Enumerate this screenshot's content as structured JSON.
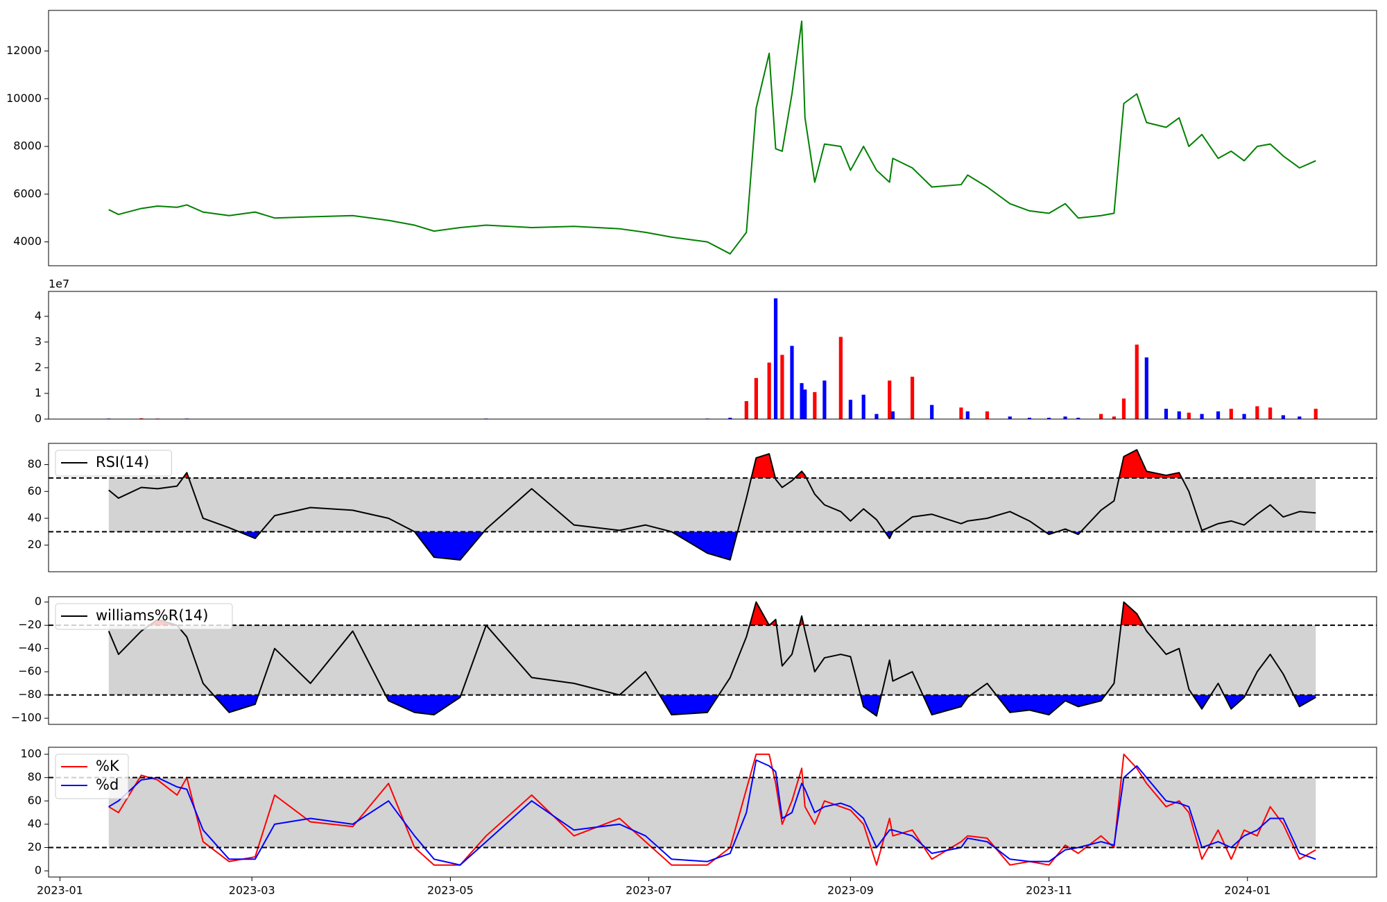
{
  "chart_data": [
    {
      "type": "line",
      "x": [
        15,
        18,
        25,
        30,
        36,
        39,
        44,
        52,
        60,
        66,
        77,
        90,
        101,
        109,
        115,
        123,
        131,
        145,
        158,
        172,
        180,
        188,
        199,
        206,
        211,
        214,
        218,
        220,
        222,
        225,
        228,
        229,
        232,
        235,
        240,
        243,
        247,
        251,
        255,
        256,
        262,
        268,
        277,
        279,
        285,
        292,
        298,
        304,
        309,
        313,
        320,
        324,
        327,
        331,
        334,
        340,
        344,
        347,
        351,
        356,
        360,
        364,
        368,
        372,
        376,
        381,
        386
      ],
      "series": [
        {
          "color": "#008000",
          "values": [
            5350,
            5150,
            5400,
            5500,
            5450,
            5550,
            5250,
            5100,
            5250,
            5000,
            5050,
            5100,
            4900,
            4700,
            4450,
            4600,
            4700,
            4600,
            4650,
            4550,
            4400,
            4200,
            4000,
            3500,
            4400,
            9600,
            11900,
            7900,
            7800,
            10200,
            13250,
            9200,
            6500,
            8100,
            8000,
            7000,
            8000,
            7000,
            6500,
            7500,
            7100,
            6300,
            6400,
            6800,
            6300,
            5600,
            5300,
            5200,
            5600,
            5000,
            5100,
            5200,
            9800,
            10200,
            9000,
            8800,
            9200,
            8000,
            8500,
            7500,
            7800,
            7400,
            8000,
            8100,
            7600,
            7100,
            7400
          ]
        }
      ],
      "xlim": [
        -3.5,
        404.7
      ],
      "ylim": [
        3000,
        13700
      ],
      "yticks": [
        4000,
        6000,
        8000,
        10000,
        12000
      ]
    },
    {
      "type": "bar",
      "x": [
        15,
        18,
        25,
        30,
        36,
        39,
        44,
        52,
        60,
        66,
        77,
        90,
        101,
        109,
        115,
        123,
        131,
        145,
        158,
        172,
        180,
        188,
        199,
        206,
        211,
        214,
        218,
        220,
        222,
        225,
        228,
        229,
        232,
        235,
        240,
        243,
        247,
        251,
        255,
        256,
        262,
        268,
        277,
        279,
        285,
        292,
        298,
        304,
        309,
        313,
        320,
        324,
        327,
        331,
        334,
        340,
        344,
        347,
        351,
        356,
        360,
        364,
        368,
        372,
        376,
        381,
        386
      ],
      "values": [
        0.02,
        0.01,
        0.03,
        0.02,
        0.01,
        0.02,
        0.01,
        0.01,
        0.01,
        0.01,
        0.01,
        0.01,
        0.01,
        0.01,
        0.01,
        0.01,
        0.02,
        0.01,
        0.01,
        0.01,
        0.01,
        0.01,
        0.02,
        0.05,
        0.7,
        1.6,
        2.2,
        4.7,
        2.5,
        2.85,
        1.4,
        1.15,
        1.05,
        1.5,
        3.2,
        0.75,
        0.95,
        0.2,
        1.5,
        0.3,
        1.65,
        0.55,
        0.45,
        0.3,
        0.3,
        0.1,
        0.05,
        0.05,
        0.1,
        0.05,
        0.2,
        0.1,
        0.8,
        2.9,
        2.4,
        0.4,
        0.3,
        0.25,
        0.2,
        0.3,
        0.4,
        0.2,
        0.5,
        0.45,
        0.15,
        0.1,
        0.4
      ],
      "colors": [
        "#0000ff",
        "#0000ff",
        "#ff0000",
        "#ff0000",
        "#0000ff",
        "#0000ff",
        "#0000ff",
        "#0000ff",
        "#0000ff",
        "#0000ff",
        "#0000ff",
        "#0000ff",
        "#0000ff",
        "#0000ff",
        "#0000ff",
        "#0000ff",
        "#0000ff",
        "#ff0000",
        "#0000ff",
        "#0000ff",
        "#0000ff",
        "#0000ff",
        "#0000ff",
        "#0000ff",
        "#ff0000",
        "#ff0000",
        "#ff0000",
        "#0000ff",
        "#ff0000",
        "#0000ff",
        "#0000ff",
        "#0000ff",
        "#ff0000",
        "#0000ff",
        "#ff0000",
        "#0000ff",
        "#0000ff",
        "#0000ff",
        "#ff0000",
        "#0000ff",
        "#ff0000",
        "#0000ff",
        "#ff0000",
        "#0000ff",
        "#ff0000",
        "#0000ff",
        "#0000ff",
        "#0000ff",
        "#0000ff",
        "#0000ff",
        "#ff0000",
        "#ff0000",
        "#ff0000",
        "#ff0000",
        "#0000ff",
        "#0000ff",
        "#0000ff",
        "#ff0000",
        "#0000ff",
        "#0000ff",
        "#ff0000",
        "#0000ff",
        "#ff0000",
        "#ff0000",
        "#0000ff",
        "#0000ff",
        "#ff0000"
      ],
      "offset_text": "1e7",
      "xlim": [
        -3.5,
        404.7
      ],
      "ylim": [
        0,
        4.97
      ],
      "yticks": [
        0,
        1,
        2,
        3,
        4
      ]
    },
    {
      "type": "line",
      "x": [
        15,
        18,
        25,
        30,
        36,
        39,
        44,
        52,
        60,
        66,
        77,
        90,
        101,
        109,
        115,
        123,
        131,
        145,
        158,
        172,
        180,
        188,
        199,
        206,
        211,
        214,
        218,
        220,
        222,
        225,
        228,
        229,
        232,
        235,
        240,
        243,
        247,
        251,
        255,
        256,
        262,
        268,
        277,
        279,
        285,
        292,
        298,
        304,
        309,
        313,
        320,
        324,
        327,
        331,
        334,
        340,
        344,
        347,
        351,
        356,
        360,
        364,
        368,
        372,
        376,
        381,
        386
      ],
      "series": [
        {
          "name": "RSI(14)",
          "color": "#000000",
          "values": [
            61,
            55,
            63,
            62,
            64,
            74,
            40,
            33,
            25,
            42,
            48,
            46,
            40,
            30,
            11,
            9,
            32,
            62,
            35,
            31,
            35,
            30,
            14,
            9,
            55,
            85,
            88,
            69,
            63,
            68,
            75,
            72,
            58,
            50,
            45,
            38,
            47,
            39,
            25,
            30,
            41,
            43,
            36,
            38,
            40,
            45,
            38,
            28,
            32,
            28,
            46,
            53,
            86,
            91,
            75,
            72,
            74,
            60,
            31,
            36,
            38,
            35,
            43,
            50,
            41,
            45,
            44
          ]
        }
      ],
      "levels": [
        30,
        70
      ],
      "band_color": "#d3d3d3",
      "above_color": "#ff0000",
      "below_color": "#0000ff",
      "legend": "upper left",
      "xlim": [
        -3.5,
        404.7
      ],
      "ylim": [
        0.2,
        95.8
      ],
      "yticks": [
        20,
        40,
        60,
        80
      ]
    },
    {
      "type": "line",
      "x": [
        15,
        18,
        25,
        30,
        36,
        39,
        44,
        52,
        60,
        66,
        77,
        90,
        101,
        109,
        115,
        123,
        131,
        145,
        158,
        172,
        180,
        188,
        199,
        206,
        211,
        214,
        218,
        220,
        222,
        225,
        228,
        229,
        232,
        235,
        240,
        243,
        247,
        251,
        255,
        256,
        262,
        268,
        277,
        279,
        285,
        292,
        298,
        304,
        309,
        313,
        320,
        324,
        327,
        331,
        334,
        340,
        344,
        347,
        351,
        356,
        360,
        364,
        368,
        372,
        376,
        381,
        386
      ],
      "series": [
        {
          "name": "williams%R(14)",
          "color": "#000000",
          "values": [
            -25,
            -45,
            -25,
            -15,
            -20,
            -30,
            -70,
            -95,
            -88,
            -40,
            -70,
            -25,
            -85,
            -95,
            -97,
            -82,
            -20,
            -65,
            -70,
            -80,
            -60,
            -97,
            -95,
            -65,
            -30,
            0,
            -20,
            -15,
            -55,
            -45,
            -12,
            -25,
            -60,
            -48,
            -45,
            -47,
            -90,
            -98,
            -50,
            -68,
            -60,
            -97,
            -90,
            -82,
            -70,
            -95,
            -93,
            -97,
            -85,
            -90,
            -85,
            -70,
            0,
            -10,
            -25,
            -45,
            -40,
            -75,
            -92,
            -70,
            -92,
            -82,
            -60,
            -45,
            -62,
            -90,
            -82
          ]
        }
      ],
      "levels": [
        -80,
        -20
      ],
      "band_color": "#d3d3d3",
      "above_color": "#ff0000",
      "below_color": "#0000ff",
      "legend": "upper left",
      "xlim": [
        -3.5,
        404.7
      ],
      "ylim": [
        -105.3,
        4.6
      ],
      "yticks": [
        {
          "value": -100,
          "label": "−100"
        },
        {
          "value": -80,
          "label": "−80"
        },
        {
          "value": -60,
          "label": "−60"
        },
        {
          "value": -40,
          "label": "−40"
        },
        {
          "value": -20,
          "label": "−20"
        },
        0
      ]
    },
    {
      "type": "line",
      "x": [
        15,
        18,
        25,
        30,
        36,
        39,
        44,
        52,
        60,
        66,
        77,
        90,
        101,
        109,
        115,
        123,
        131,
        145,
        158,
        172,
        180,
        188,
        199,
        206,
        211,
        214,
        218,
        220,
        222,
        225,
        228,
        229,
        232,
        235,
        240,
        243,
        247,
        251,
        255,
        256,
        262,
        268,
        277,
        279,
        285,
        292,
        298,
        304,
        309,
        313,
        320,
        324,
        327,
        331,
        334,
        340,
        344,
        347,
        351,
        356,
        360,
        364,
        368,
        372,
        376,
        381,
        386
      ],
      "series": [
        {
          "name": "%K",
          "color": "#ff0000",
          "values": [
            55,
            50,
            82,
            78,
            65,
            80,
            25,
            8,
            12,
            65,
            42,
            38,
            75,
            20,
            5,
            5,
            30,
            65,
            30,
            45,
            25,
            5,
            5,
            20,
            70,
            100,
            100,
            75,
            40,
            60,
            88,
            55,
            40,
            60,
            55,
            52,
            40,
            5,
            45,
            30,
            35,
            10,
            25,
            30,
            28,
            5,
            8,
            5,
            22,
            15,
            30,
            20,
            100,
            88,
            75,
            55,
            60,
            50,
            10,
            35,
            10,
            35,
            30,
            55,
            40,
            10,
            18
          ]
        },
        {
          "name": "%d",
          "color": "#0000ff",
          "values": [
            55,
            60,
            78,
            80,
            72,
            70,
            35,
            10,
            10,
            40,
            45,
            40,
            60,
            30,
            10,
            5,
            25,
            60,
            35,
            40,
            30,
            10,
            8,
            15,
            50,
            95,
            90,
            85,
            45,
            50,
            75,
            70,
            50,
            55,
            58,
            55,
            45,
            20,
            35,
            35,
            30,
            15,
            20,
            28,
            25,
            10,
            8,
            8,
            18,
            20,
            25,
            22,
            80,
            90,
            80,
            60,
            58,
            55,
            20,
            25,
            20,
            30,
            35,
            45,
            45,
            15,
            10
          ]
        }
      ],
      "levels": [
        20,
        80
      ],
      "band_color": "#d3d3d3",
      "legend": "upper left",
      "xlim": [
        -3.5,
        404.7
      ],
      "ylim": [
        -5.3,
        106
      ],
      "yticks": [
        0,
        20,
        40,
        60,
        80,
        100
      ],
      "xticks": [
        {
          "value": 0,
          "label": "2023-01"
        },
        {
          "value": 59,
          "label": "2023-03"
        },
        {
          "value": 120,
          "label": "2023-05"
        },
        {
          "value": 181,
          "label": "2023-07"
        },
        {
          "value": 243,
          "label": "2023-09"
        },
        {
          "value": 304,
          "label": "2023-11"
        },
        {
          "value": 365,
          "label": "2024-01"
        }
      ]
    }
  ]
}
